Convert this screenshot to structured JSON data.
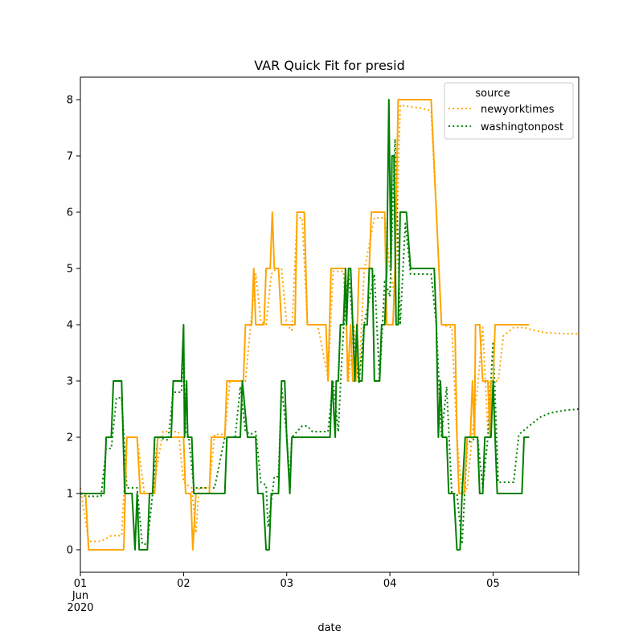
{
  "chart_data": {
    "type": "line",
    "title": "VAR Quick Fit for presid",
    "xlabel": "date",
    "ylabel": "",
    "x_ticks": [
      {
        "day": 0,
        "lines": [
          "01",
          "Jun",
          "2020"
        ]
      },
      {
        "day": 1,
        "lines": [
          "02"
        ]
      },
      {
        "day": 2,
        "lines": [
          "03"
        ]
      },
      {
        "day": 3,
        "lines": [
          "04"
        ]
      },
      {
        "day": 4,
        "lines": [
          "05"
        ]
      }
    ],
    "xlim": [
      0,
      4.83
    ],
    "ylim": [
      -0.4,
      8.4
    ],
    "y_ticks": [
      0,
      1,
      2,
      3,
      4,
      5,
      6,
      7,
      8
    ],
    "legend": {
      "title": "source",
      "placement": "top-right"
    },
    "series": [
      {
        "name": "newyorktimes",
        "color": "#ffa500",
        "style": "dotted",
        "points": [
          [
            0.0,
            1.1
          ],
          [
            0.08,
            0.15
          ],
          [
            0.2,
            0.15
          ],
          [
            0.3,
            0.25
          ],
          [
            0.4,
            0.25
          ],
          [
            0.45,
            2.0
          ],
          [
            0.55,
            2.0
          ],
          [
            0.62,
            1.0
          ],
          [
            0.7,
            1.0
          ],
          [
            0.8,
            2.1
          ],
          [
            0.95,
            2.1
          ],
          [
            1.0,
            1.2
          ],
          [
            1.08,
            1.1
          ],
          [
            1.12,
            0.3
          ],
          [
            1.15,
            1.1
          ],
          [
            1.25,
            1.1
          ],
          [
            1.3,
            2.05
          ],
          [
            1.4,
            2.05
          ],
          [
            1.45,
            3.0
          ],
          [
            1.6,
            3.0
          ],
          [
            1.65,
            4.0
          ],
          [
            1.7,
            4.9
          ],
          [
            1.75,
            4.05
          ],
          [
            1.8,
            4.0
          ],
          [
            1.85,
            4.9
          ],
          [
            1.9,
            5.0
          ],
          [
            1.95,
            5.0
          ],
          [
            2.0,
            4.0
          ],
          [
            2.05,
            3.9
          ],
          [
            2.1,
            5.9
          ],
          [
            2.15,
            5.9
          ],
          [
            2.2,
            4.0
          ],
          [
            2.3,
            4.0
          ],
          [
            2.4,
            3.05
          ],
          [
            2.45,
            4.95
          ],
          [
            2.55,
            4.95
          ],
          [
            2.6,
            3.0
          ],
          [
            2.65,
            4.0
          ],
          [
            2.7,
            3.0
          ],
          [
            2.75,
            4.95
          ],
          [
            2.85,
            5.9
          ],
          [
            2.95,
            5.9
          ],
          [
            3.0,
            5.0
          ],
          [
            3.05,
            4.5
          ],
          [
            3.1,
            7.9
          ],
          [
            3.3,
            7.85
          ],
          [
            3.4,
            7.8
          ],
          [
            3.45,
            6.0
          ],
          [
            3.5,
            4.0
          ],
          [
            3.6,
            3.95
          ],
          [
            3.65,
            2.0
          ],
          [
            3.7,
            1.0
          ],
          [
            3.75,
            1.1
          ],
          [
            3.8,
            2.1
          ],
          [
            3.85,
            2.9
          ],
          [
            3.9,
            3.95
          ],
          [
            3.95,
            2.1
          ],
          [
            3.97,
            3.0
          ],
          [
            4.05,
            3.0
          ],
          [
            4.1,
            3.8
          ],
          [
            4.2,
            3.95
          ],
          [
            4.3,
            3.95
          ],
          [
            4.4,
            3.9
          ],
          [
            4.5,
            3.86
          ],
          [
            4.7,
            3.84
          ],
          [
            4.83,
            3.84
          ]
        ]
      },
      {
        "name": "washingtonpost",
        "color": "#008000",
        "style": "dotted",
        "points": [
          [
            0.0,
            1.0
          ],
          [
            0.05,
            0.95
          ],
          [
            0.2,
            0.95
          ],
          [
            0.25,
            1.8
          ],
          [
            0.3,
            1.8
          ],
          [
            0.35,
            2.7
          ],
          [
            0.4,
            2.7
          ],
          [
            0.45,
            1.1
          ],
          [
            0.55,
            1.1
          ],
          [
            0.6,
            0.1
          ],
          [
            0.65,
            0.1
          ],
          [
            0.7,
            1.0
          ],
          [
            0.75,
            2.0
          ],
          [
            0.85,
            1.95
          ],
          [
            0.9,
            2.8
          ],
          [
            0.98,
            2.8
          ],
          [
            1.0,
            3.6
          ],
          [
            1.02,
            2.1
          ],
          [
            1.05,
            2.0
          ],
          [
            1.1,
            1.1
          ],
          [
            1.2,
            1.1
          ],
          [
            1.3,
            1.1
          ],
          [
            1.4,
            2.0
          ],
          [
            1.5,
            2.0
          ],
          [
            1.55,
            2.9
          ],
          [
            1.6,
            2.1
          ],
          [
            1.65,
            2.05
          ],
          [
            1.7,
            2.1
          ],
          [
            1.75,
            1.2
          ],
          [
            1.8,
            1.15
          ],
          [
            1.82,
            0.4
          ],
          [
            1.88,
            1.3
          ],
          [
            1.92,
            1.3
          ],
          [
            1.95,
            2.9
          ],
          [
            2.0,
            2.05
          ],
          [
            2.03,
            1.2
          ],
          [
            2.05,
            2.0
          ],
          [
            2.15,
            2.2
          ],
          [
            2.2,
            2.2
          ],
          [
            2.25,
            2.1
          ],
          [
            2.4,
            2.1
          ],
          [
            2.45,
            3.0
          ],
          [
            2.5,
            2.1
          ],
          [
            2.52,
            2.9
          ],
          [
            2.55,
            3.9
          ],
          [
            2.6,
            4.9
          ],
          [
            2.65,
            3.8
          ],
          [
            2.7,
            2.95
          ],
          [
            2.75,
            4.0
          ],
          [
            2.85,
            4.9
          ],
          [
            2.9,
            3.0
          ],
          [
            2.95,
            4.8
          ],
          [
            3.0,
            4.5
          ],
          [
            3.05,
            7.3
          ],
          [
            3.1,
            4.0
          ],
          [
            3.15,
            5.8
          ],
          [
            3.2,
            4.9
          ],
          [
            3.4,
            4.9
          ],
          [
            3.45,
            4.0
          ],
          [
            3.5,
            2.0
          ],
          [
            3.55,
            2.9
          ],
          [
            3.6,
            1.0
          ],
          [
            3.65,
            1.0
          ],
          [
            3.7,
            0.1
          ],
          [
            3.75,
            1.9
          ],
          [
            3.85,
            2.0
          ],
          [
            3.9,
            1.1
          ],
          [
            3.95,
            2.0
          ],
          [
            4.0,
            3.7
          ],
          [
            4.05,
            1.2
          ],
          [
            4.15,
            1.2
          ],
          [
            4.2,
            1.2
          ],
          [
            4.25,
            2.05
          ],
          [
            4.35,
            2.2
          ],
          [
            4.45,
            2.35
          ],
          [
            4.55,
            2.43
          ],
          [
            4.7,
            2.48
          ],
          [
            4.83,
            2.5
          ]
        ]
      },
      {
        "name": "",
        "color": "#ffa500",
        "style": "solid",
        "points": [
          [
            0.0,
            1.0
          ],
          [
            0.05,
            1.0
          ],
          [
            0.08,
            0.0
          ],
          [
            0.42,
            0.0
          ],
          [
            0.45,
            2.0
          ],
          [
            0.55,
            2.0
          ],
          [
            0.58,
            1.0
          ],
          [
            0.72,
            1.0
          ],
          [
            0.75,
            2.0
          ],
          [
            1.0,
            2.0
          ],
          [
            1.02,
            1.0
          ],
          [
            1.07,
            1.0
          ],
          [
            1.09,
            0.0
          ],
          [
            1.12,
            1.0
          ],
          [
            1.25,
            1.0
          ],
          [
            1.27,
            2.0
          ],
          [
            1.4,
            2.0
          ],
          [
            1.42,
            3.0
          ],
          [
            1.58,
            3.0
          ],
          [
            1.6,
            4.0
          ],
          [
            1.66,
            4.0
          ],
          [
            1.68,
            5.0
          ],
          [
            1.7,
            4.0
          ],
          [
            1.78,
            4.0
          ],
          [
            1.8,
            5.0
          ],
          [
            1.84,
            5.0
          ],
          [
            1.86,
            6.0
          ],
          [
            1.88,
            5.0
          ],
          [
            1.92,
            5.0
          ],
          [
            1.95,
            4.0
          ],
          [
            2.08,
            4.0
          ],
          [
            2.1,
            6.0
          ],
          [
            2.17,
            6.0
          ],
          [
            2.2,
            4.0
          ],
          [
            2.38,
            4.0
          ],
          [
            2.4,
            3.0
          ],
          [
            2.43,
            5.0
          ],
          [
            2.57,
            5.0
          ],
          [
            2.59,
            3.0
          ],
          [
            2.62,
            4.0
          ],
          [
            2.64,
            3.0
          ],
          [
            2.67,
            3.0
          ],
          [
            2.7,
            5.0
          ],
          [
            2.8,
            5.0
          ],
          [
            2.82,
            6.0
          ],
          [
            2.95,
            6.0
          ],
          [
            2.97,
            4.0
          ],
          [
            3.03,
            4.0
          ],
          [
            3.05,
            5.0
          ],
          [
            3.08,
            8.0
          ],
          [
            3.4,
            8.0
          ],
          [
            3.45,
            6.0
          ],
          [
            3.5,
            4.0
          ],
          [
            3.63,
            4.0
          ],
          [
            3.65,
            2.0
          ],
          [
            3.67,
            1.0
          ],
          [
            3.72,
            1.0
          ],
          [
            3.75,
            2.0
          ],
          [
            3.78,
            2.0
          ],
          [
            3.8,
            3.0
          ],
          [
            3.82,
            2.0
          ],
          [
            3.83,
            4.0
          ],
          [
            3.87,
            4.0
          ],
          [
            3.9,
            3.0
          ],
          [
            3.95,
            3.0
          ],
          [
            3.97,
            2.0
          ],
          [
            3.98,
            3.0
          ],
          [
            4.0,
            3.0
          ],
          [
            4.02,
            4.0
          ],
          [
            4.35,
            4.0
          ]
        ]
      },
      {
        "name": "",
        "color": "#008000",
        "style": "solid",
        "points": [
          [
            0.0,
            1.0
          ],
          [
            0.23,
            1.0
          ],
          [
            0.25,
            2.0
          ],
          [
            0.3,
            2.0
          ],
          [
            0.32,
            3.0
          ],
          [
            0.4,
            3.0
          ],
          [
            0.43,
            1.0
          ],
          [
            0.5,
            1.0
          ],
          [
            0.53,
            0.0
          ],
          [
            0.55,
            1.0
          ],
          [
            0.57,
            0.0
          ],
          [
            0.65,
            0.0
          ],
          [
            0.67,
            1.0
          ],
          [
            0.7,
            1.0
          ],
          [
            0.72,
            2.0
          ],
          [
            0.88,
            2.0
          ],
          [
            0.9,
            3.0
          ],
          [
            0.98,
            3.0
          ],
          [
            1.0,
            4.0
          ],
          [
            1.01,
            2.0
          ],
          [
            1.03,
            3.0
          ],
          [
            1.04,
            2.0
          ],
          [
            1.08,
            2.0
          ],
          [
            1.1,
            1.0
          ],
          [
            1.4,
            1.0
          ],
          [
            1.42,
            2.0
          ],
          [
            1.55,
            2.0
          ],
          [
            1.57,
            3.0
          ],
          [
            1.62,
            2.0
          ],
          [
            1.7,
            2.0
          ],
          [
            1.72,
            1.0
          ],
          [
            1.77,
            1.0
          ],
          [
            1.8,
            0.0
          ],
          [
            1.83,
            0.0
          ],
          [
            1.85,
            1.0
          ],
          [
            1.92,
            1.0
          ],
          [
            1.95,
            3.0
          ],
          [
            1.98,
            3.0
          ],
          [
            2.0,
            2.0
          ],
          [
            2.03,
            1.0
          ],
          [
            2.05,
            2.0
          ],
          [
            2.42,
            2.0
          ],
          [
            2.44,
            3.0
          ],
          [
            2.47,
            2.0
          ],
          [
            2.48,
            3.0
          ],
          [
            2.5,
            3.0
          ],
          [
            2.52,
            4.0
          ],
          [
            2.55,
            4.0
          ],
          [
            2.57,
            5.0
          ],
          [
            2.58,
            4.0
          ],
          [
            2.6,
            5.0
          ],
          [
            2.62,
            5.0
          ],
          [
            2.64,
            4.0
          ],
          [
            2.66,
            3.0
          ],
          [
            2.68,
            4.0
          ],
          [
            2.7,
            3.0
          ],
          [
            2.73,
            3.0
          ],
          [
            2.75,
            4.0
          ],
          [
            2.78,
            4.0
          ],
          [
            2.8,
            5.0
          ],
          [
            2.83,
            5.0
          ],
          [
            2.85,
            3.0
          ],
          [
            2.9,
            3.0
          ],
          [
            2.92,
            4.0
          ],
          [
            2.95,
            4.0
          ],
          [
            2.97,
            5.0
          ],
          [
            2.99,
            8.0
          ],
          [
            3.01,
            5.0
          ],
          [
            3.02,
            7.0
          ],
          [
            3.04,
            7.0
          ],
          [
            3.06,
            4.0
          ],
          [
            3.08,
            4.0
          ],
          [
            3.1,
            6.0
          ],
          [
            3.16,
            6.0
          ],
          [
            3.2,
            5.0
          ],
          [
            3.43,
            5.0
          ],
          [
            3.45,
            4.0
          ],
          [
            3.47,
            2.0
          ],
          [
            3.49,
            3.0
          ],
          [
            3.51,
            2.0
          ],
          [
            3.55,
            2.0
          ],
          [
            3.57,
            1.0
          ],
          [
            3.62,
            1.0
          ],
          [
            3.65,
            0.0
          ],
          [
            3.68,
            0.0
          ],
          [
            3.7,
            1.0
          ],
          [
            3.73,
            2.0
          ],
          [
            3.85,
            2.0
          ],
          [
            3.87,
            1.0
          ],
          [
            3.9,
            1.0
          ],
          [
            3.92,
            2.0
          ],
          [
            3.98,
            2.0
          ],
          [
            4.0,
            3.0
          ],
          [
            4.02,
            2.0
          ],
          [
            4.04,
            1.0
          ],
          [
            4.28,
            1.0
          ],
          [
            4.3,
            2.0
          ],
          [
            4.35,
            2.0
          ]
        ]
      }
    ]
  }
}
